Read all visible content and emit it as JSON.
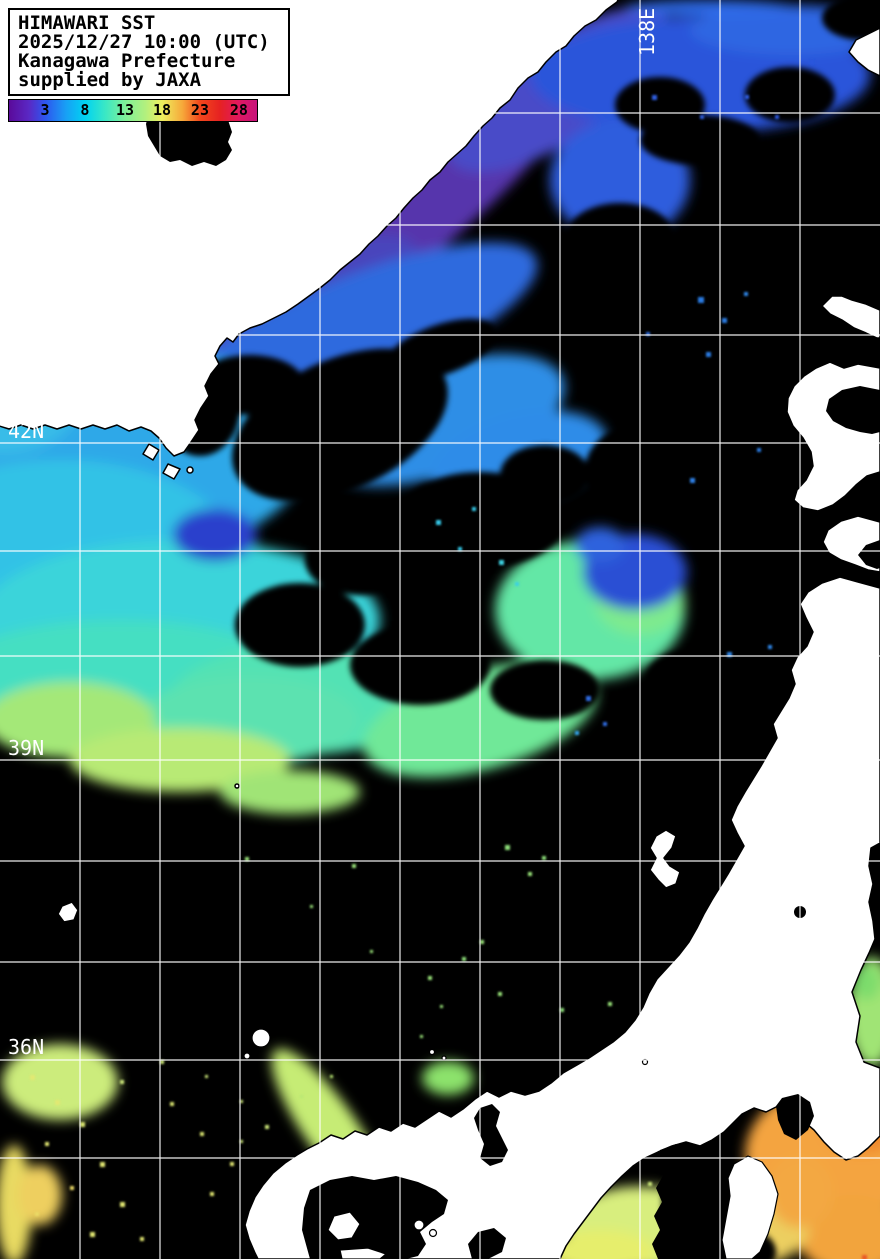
{
  "header": {
    "lines": [
      "HIMAWARI SST",
      "2025/12/27 10:00 (UTC)",
      "Kanagawa Prefecture",
      "supplied by JAXA"
    ]
  },
  "colorbar": {
    "ticks": [
      "3",
      "8",
      "13",
      "18",
      "23",
      "28"
    ]
  },
  "map_labels": {
    "lat": [
      "42N",
      "39N",
      "36N"
    ],
    "lon": [
      "138E"
    ]
  },
  "colors": {
    "land": "#ffffff",
    "no_data": "#000000",
    "gridline": "#ffffff",
    "cold_end": "#5a0a9a",
    "warm_end": "#c6127c"
  },
  "chart_data": {
    "type": "heatmap",
    "title": "HIMAWARI SST",
    "datetime": "2025/12/27 10:00 (UTC)",
    "region_note": "Kanagawa Prefecture",
    "credit": "supplied by JAXA",
    "colorbar_tick_values": [
      3,
      8,
      13,
      18,
      23,
      28
    ],
    "visible_lat_labels": [
      "42N",
      "39N",
      "36N"
    ],
    "visible_lon_labels": [
      "138E"
    ],
    "legend_position": "top-left"
  }
}
